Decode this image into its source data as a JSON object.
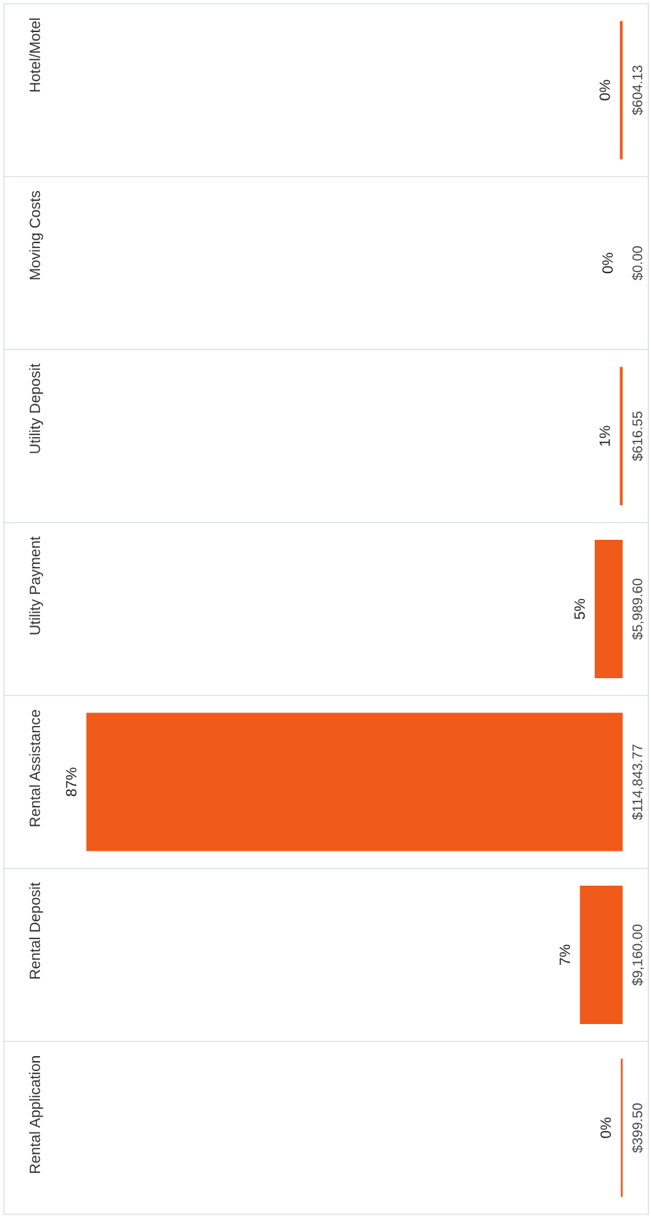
{
  "chart_data": {
    "type": "bar",
    "orientation": "horizontal",
    "categories": [
      "Hotel/Motel",
      "Moving Costs",
      "Utility Deposit",
      "Utility Payment",
      "Rental Assistance",
      "Rental Deposit",
      "Rental Application"
    ],
    "values": [
      604.13,
      0.0,
      616.55,
      5989.6,
      114843.77,
      9160.0,
      399.5
    ],
    "value_labels": [
      "$604.13",
      "$0.00",
      "$616.55",
      "$5,989.60",
      "$114,843.77",
      "$9,160.00",
      "$399.50"
    ],
    "color": "#f05a1a",
    "xlim": [
      132500,
      -5500
    ],
    "tick_labels": "y",
    "grid": "y",
    "annotations": [
      {
        "text": "0%",
        "x": 604.13,
        "y": "Hotel/Motel"
      },
      {
        "text": "0%",
        "x": 0.0,
        "y": "Moving Costs"
      },
      {
        "text": "1%",
        "x": 616.55,
        "y": "Utility Deposit"
      },
      {
        "text": "5%",
        "x": 5989.6,
        "y": "Utility Payment"
      },
      {
        "text": "87%",
        "x": 114843.77,
        "y": "Rental Assistance"
      },
      {
        "text": "7%",
        "x": 9160.0,
        "y": "Rental Deposit"
      },
      {
        "text": "0%",
        "x": 399.5,
        "y": "Rental Application"
      }
    ]
  }
}
